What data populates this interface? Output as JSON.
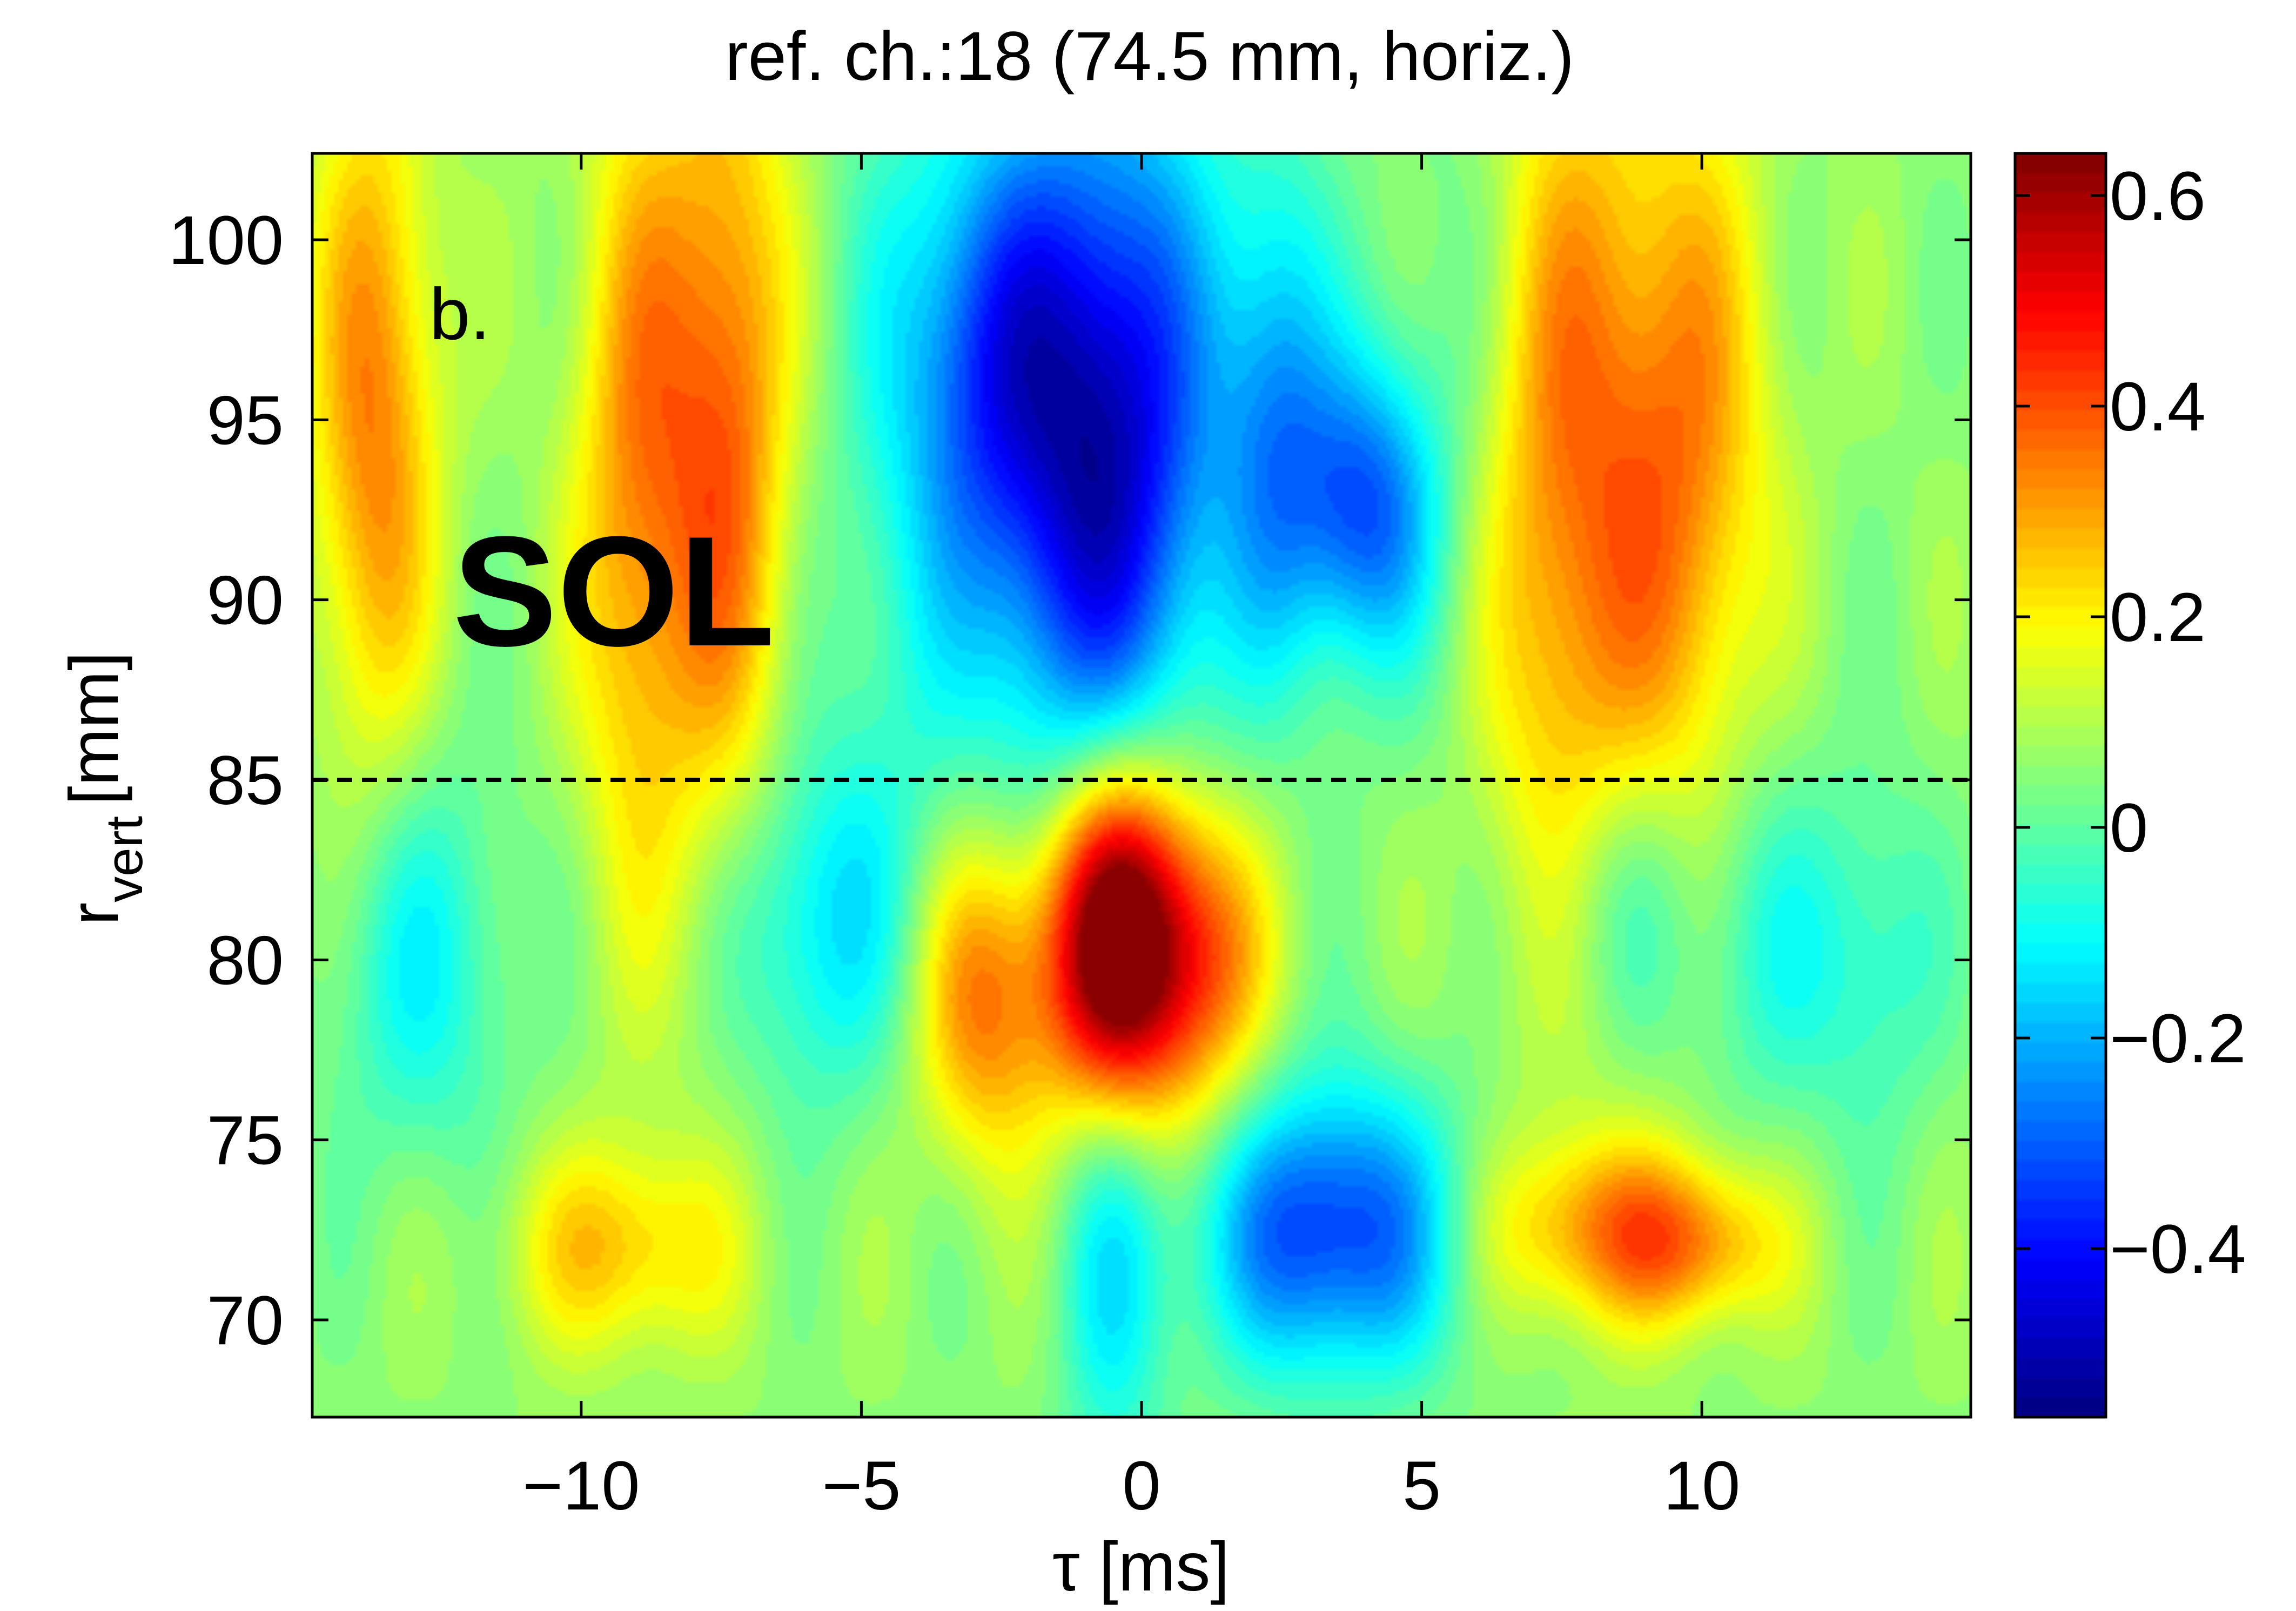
{
  "chart_data": {
    "type": "heatmap",
    "title": "ref. ch.:18 (74.5 mm, horiz.)",
    "xlabel": "τ [ms]",
    "ylabel_main": "r",
    "ylabel_sub": "vert",
    "ylabel_unit": "[mm]",
    "xlim": [
      -14.8,
      14.8
    ],
    "ylim": [
      67.3,
      102.4
    ],
    "xticks": [
      -10,
      -5,
      0,
      5,
      10
    ],
    "xtick_labels": [
      "−10",
      "−5",
      "0",
      "5",
      "10"
    ],
    "yticks": [
      70,
      75,
      80,
      85,
      90,
      95,
      100
    ],
    "ytick_labels": [
      "70",
      "75",
      "80",
      "85",
      "90",
      "95",
      "100"
    ],
    "colorbar": {
      "clim": [
        -0.56,
        0.64
      ],
      "ticks": [
        -0.4,
        -0.2,
        0,
        0.2,
        0.4,
        0.6
      ],
      "tick_labels": [
        "−0.4",
        "−0.2",
        "0",
        "0.2",
        "0.4",
        "0.6"
      ],
      "colormap": "jet"
    },
    "reference_line": {
      "y": 85,
      "style": "dashed",
      "color": "#000000"
    },
    "annotations": [
      {
        "text": "b.",
        "x": -12.9,
        "y": 97.3
      },
      {
        "text": "SOL",
        "x": -12.5,
        "y": 89.6
      }
    ],
    "grid": false,
    "field_features": [
      {
        "x": -0.4,
        "y": 80.5,
        "sx": 0.9,
        "sy": 3.4,
        "amp": 0.78
      },
      {
        "x": -2.8,
        "y": 79.0,
        "sx": 0.9,
        "sy": 3.2,
        "amp": 0.3
      },
      {
        "x": 1.2,
        "y": 80.0,
        "sx": 0.8,
        "sy": 3.0,
        "amp": 0.26
      },
      {
        "x": -0.8,
        "y": 94.5,
        "sx": 1.5,
        "sy": 6.8,
        "amp": -0.58
      },
      {
        "x": -2.8,
        "y": 97.0,
        "sx": 0.9,
        "sy": 4.0,
        "amp": -0.2
      },
      {
        "x": 2.4,
        "y": 95.5,
        "sx": 0.7,
        "sy": 5.0,
        "amp": -0.22
      },
      {
        "x": 3.9,
        "y": 92.5,
        "sx": 0.9,
        "sy": 3.0,
        "amp": -0.36
      },
      {
        "x": 3.4,
        "y": 72.5,
        "sx": 1.6,
        "sy": 2.8,
        "amp": -0.42
      },
      {
        "x": -5.8,
        "y": 81.0,
        "sx": 1.2,
        "sy": 3.5,
        "amp": -0.2
      },
      {
        "x": -12.9,
        "y": 80.0,
        "sx": 1.2,
        "sy": 4.0,
        "amp": -0.17
      },
      {
        "x": 8.5,
        "y": 81.5,
        "sx": 1.0,
        "sy": 3.0,
        "amp": -0.14
      },
      {
        "x": 11.0,
        "y": 80.5,
        "sx": 0.9,
        "sy": 3.5,
        "amp": -0.12
      },
      {
        "x": 13.0,
        "y": 80.0,
        "sx": 0.9,
        "sy": 3.5,
        "amp": -0.13
      },
      {
        "x": -13.7,
        "y": 95.0,
        "sx": 0.8,
        "sy": 7.0,
        "amp": 0.28
      },
      {
        "x": -9.0,
        "y": 93.0,
        "sx": 0.8,
        "sy": 8.0,
        "amp": 0.26
      },
      {
        "x": -7.4,
        "y": 95.0,
        "sx": 0.8,
        "sy": 8.0,
        "amp": 0.3
      },
      {
        "x": 7.6,
        "y": 93.0,
        "sx": 1.2,
        "sy": 9.0,
        "amp": 0.3
      },
      {
        "x": 9.8,
        "y": 94.0,
        "sx": 1.0,
        "sy": 7.0,
        "amp": 0.24
      },
      {
        "x": -9.3,
        "y": 72.0,
        "sx": 1.4,
        "sy": 2.0,
        "amp": 0.2
      },
      {
        "x": 8.3,
        "y": 72.5,
        "sx": 1.6,
        "sy": 1.8,
        "amp": 0.26
      },
      {
        "x": 10.0,
        "y": 72.0,
        "sx": 1.0,
        "sy": 1.5,
        "amp": 0.16
      },
      {
        "x": -0.5,
        "y": 72.0,
        "sx": 0.7,
        "sy": 5.0,
        "amp": -0.18
      },
      {
        "x": -4.2,
        "y": 94.0,
        "sx": 1.0,
        "sy": 8.0,
        "amp": -0.12
      },
      {
        "x": 5.7,
        "y": 96.0,
        "sx": 1.0,
        "sy": 8.0,
        "amp": -0.08
      }
    ]
  }
}
